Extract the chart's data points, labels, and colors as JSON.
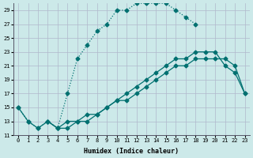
{
  "xlabel": "Humidex (Indice chaleur)",
  "bg_color": "#cce9e9",
  "grid_color": "#b0b8cc",
  "line_color": "#007070",
  "xlim": [
    -0.5,
    23.5
  ],
  "ylim": [
    11,
    30
  ],
  "xticks": [
    0,
    1,
    2,
    3,
    4,
    5,
    6,
    7,
    8,
    9,
    10,
    11,
    12,
    13,
    14,
    15,
    16,
    17,
    18,
    19,
    20,
    21,
    22,
    23
  ],
  "yticks": [
    11,
    13,
    15,
    17,
    19,
    21,
    23,
    25,
    27,
    29
  ],
  "curve1_x": [
    0,
    1,
    2,
    3,
    4,
    5,
    6,
    7,
    8,
    9,
    10,
    11,
    12,
    13,
    14,
    15,
    16,
    17,
    18
  ],
  "curve1_y": [
    15,
    13,
    12,
    13,
    12,
    17,
    22,
    24,
    26,
    27,
    29,
    29,
    30,
    30,
    30,
    30,
    29,
    28,
    27
  ],
  "curve2_x": [
    0,
    1,
    2,
    3,
    4,
    5,
    6,
    7,
    8,
    9,
    10,
    11,
    12,
    13,
    14,
    15,
    16,
    17,
    18,
    19,
    20,
    21,
    22,
    23
  ],
  "curve2_y": [
    15,
    13,
    12,
    13,
    12,
    12,
    13,
    13,
    14,
    15,
    16,
    17,
    18,
    19,
    20,
    21,
    22,
    22,
    23,
    23,
    23,
    21,
    20,
    17
  ],
  "curve3_x": [
    3,
    4,
    5,
    6,
    7,
    8,
    9,
    10,
    11,
    12,
    13,
    14,
    15,
    16,
    17,
    18,
    19,
    20,
    21,
    22,
    23
  ],
  "curve3_y": [
    13,
    12,
    13,
    13,
    14,
    14,
    15,
    16,
    16,
    17,
    18,
    19,
    20,
    21,
    21,
    22,
    22,
    22,
    22,
    21,
    17
  ]
}
